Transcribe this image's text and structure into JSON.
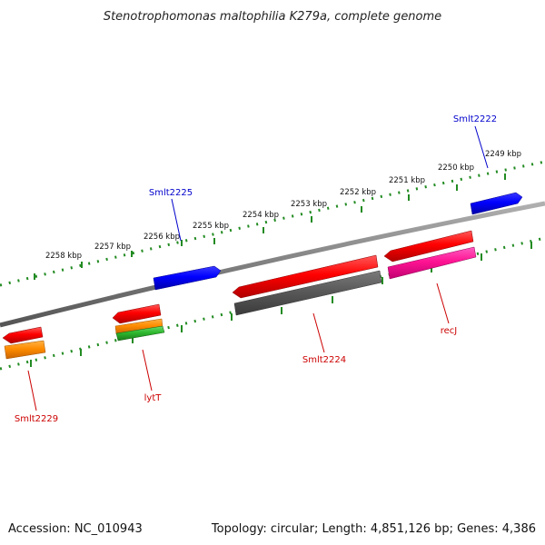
{
  "title": "Stenotrophomonas maltophilia K279a, complete genome",
  "footer": {
    "accession": "Accession: NC_010943",
    "stats": "Topology: circular; Length: 4,851,126 bp; Genes: 4,386"
  },
  "ticks": [
    "2249 kbp",
    "2250 kbp",
    "2251 kbp",
    "2252 kbp",
    "2253 kbp",
    "2254 kbp",
    "2255 kbp",
    "2256 kbp",
    "2257 kbp",
    "2258 kbp"
  ],
  "genes": [
    {
      "name": "Smlt2222",
      "color": "#0000cc"
    },
    {
      "name": "Smlt2225",
      "color": "#0000cc"
    },
    {
      "name": "recJ",
      "color": "#cc0000"
    },
    {
      "name": "Smlt2224",
      "color": "#cc0000"
    },
    {
      "name": "lytT",
      "color": "#cc0000"
    },
    {
      "name": "Smlt2229",
      "color": "#cc0000"
    }
  ],
  "feature_colors": {
    "forward_cds": "#0000ff",
    "reverse_cds": "#ff0000",
    "gray": "#666666",
    "magenta": "#ff1493",
    "orange": "#ff8c00",
    "green": "#2eb82e",
    "backbone": "#808080",
    "tick_ring": "#228b22"
  }
}
